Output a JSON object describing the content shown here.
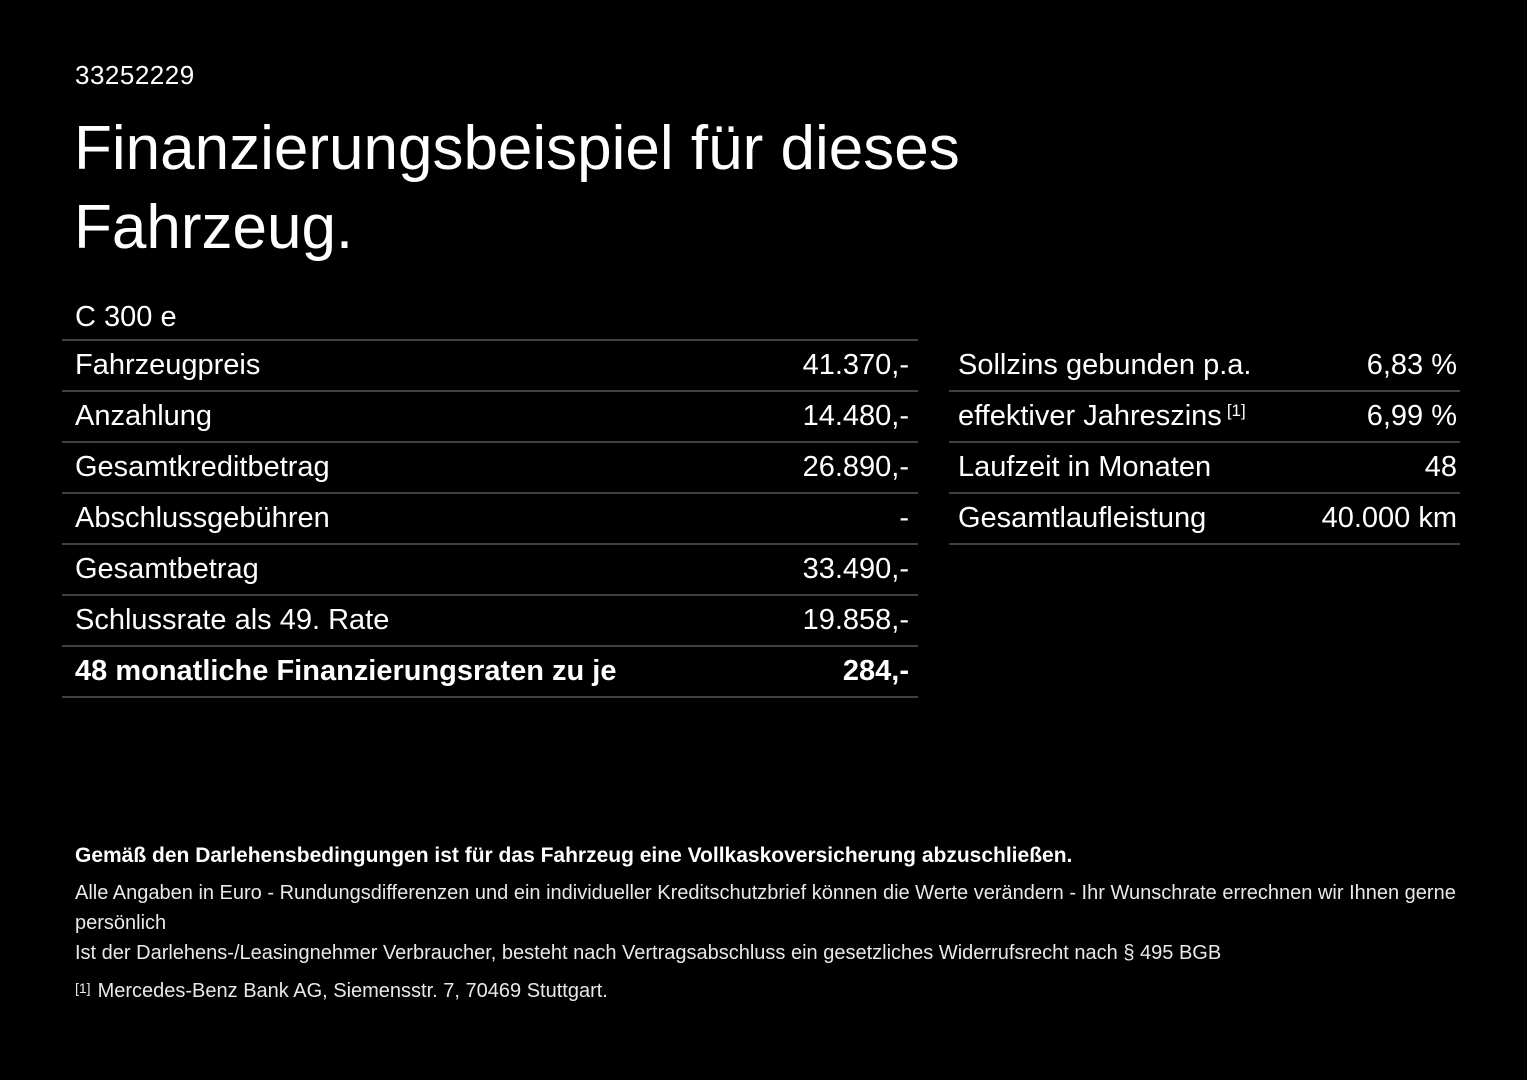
{
  "page": {
    "background_color": "#000000",
    "text_color": "#ffffff",
    "divider_color": "#414141"
  },
  "header": {
    "offer_id": "33252229",
    "title_line1": "Finanzierungsbeispiel für dieses",
    "title_line2": "Fahrzeug."
  },
  "left_table": {
    "model": "C 300 e",
    "rows": [
      {
        "label": "Fahrzeugpreis",
        "value": "41.370,-"
      },
      {
        "label": "Anzahlung",
        "value": "14.480,-"
      },
      {
        "label": "Gesamtkreditbetrag",
        "value": "26.890,-"
      },
      {
        "label": "Abschlussgebühren",
        "value": "-"
      },
      {
        "label": "Gesamtbetrag",
        "value": "33.490,-"
      },
      {
        "label": "Schlussrate als 49. Rate",
        "value": "19.858,-"
      },
      {
        "label": "48 monatliche Finanzierungsraten zu je",
        "value": "284,-"
      }
    ]
  },
  "right_table": {
    "rows": [
      {
        "label": "Sollzins gebunden p.a.",
        "sup": "",
        "value": "6,83 %"
      },
      {
        "label": "effektiver Jahreszins",
        "sup": "[1]",
        "value": "6,99 %"
      },
      {
        "label": "Laufzeit in Monaten",
        "sup": "",
        "value": "48"
      },
      {
        "label": "Gesamtlaufleistung",
        "sup": "",
        "value": "40.000 km"
      }
    ]
  },
  "footnotes": {
    "line1": "Gemäß den Darlehensbedingungen ist für das Fahrzeug eine Vollkaskoversicherung abzuschließen.",
    "line2": "Alle Angaben in Euro - Rundungsdifferenzen und ein individueller Kreditschutzbrief können die Werte verändern - Ihr Wunschrate errechnen wir Ihnen gerne persönlich",
    "line3": "Ist der Darlehens-/Leasingnehmer Verbraucher, besteht nach Vertragsabschluss ein gesetzliches Widerrufsrecht nach § 495 BGB",
    "footnote_marker": "[1]",
    "footnote_text": "Mercedes-Benz Bank AG, Siemensstr. 7, 70469 Stuttgart."
  }
}
